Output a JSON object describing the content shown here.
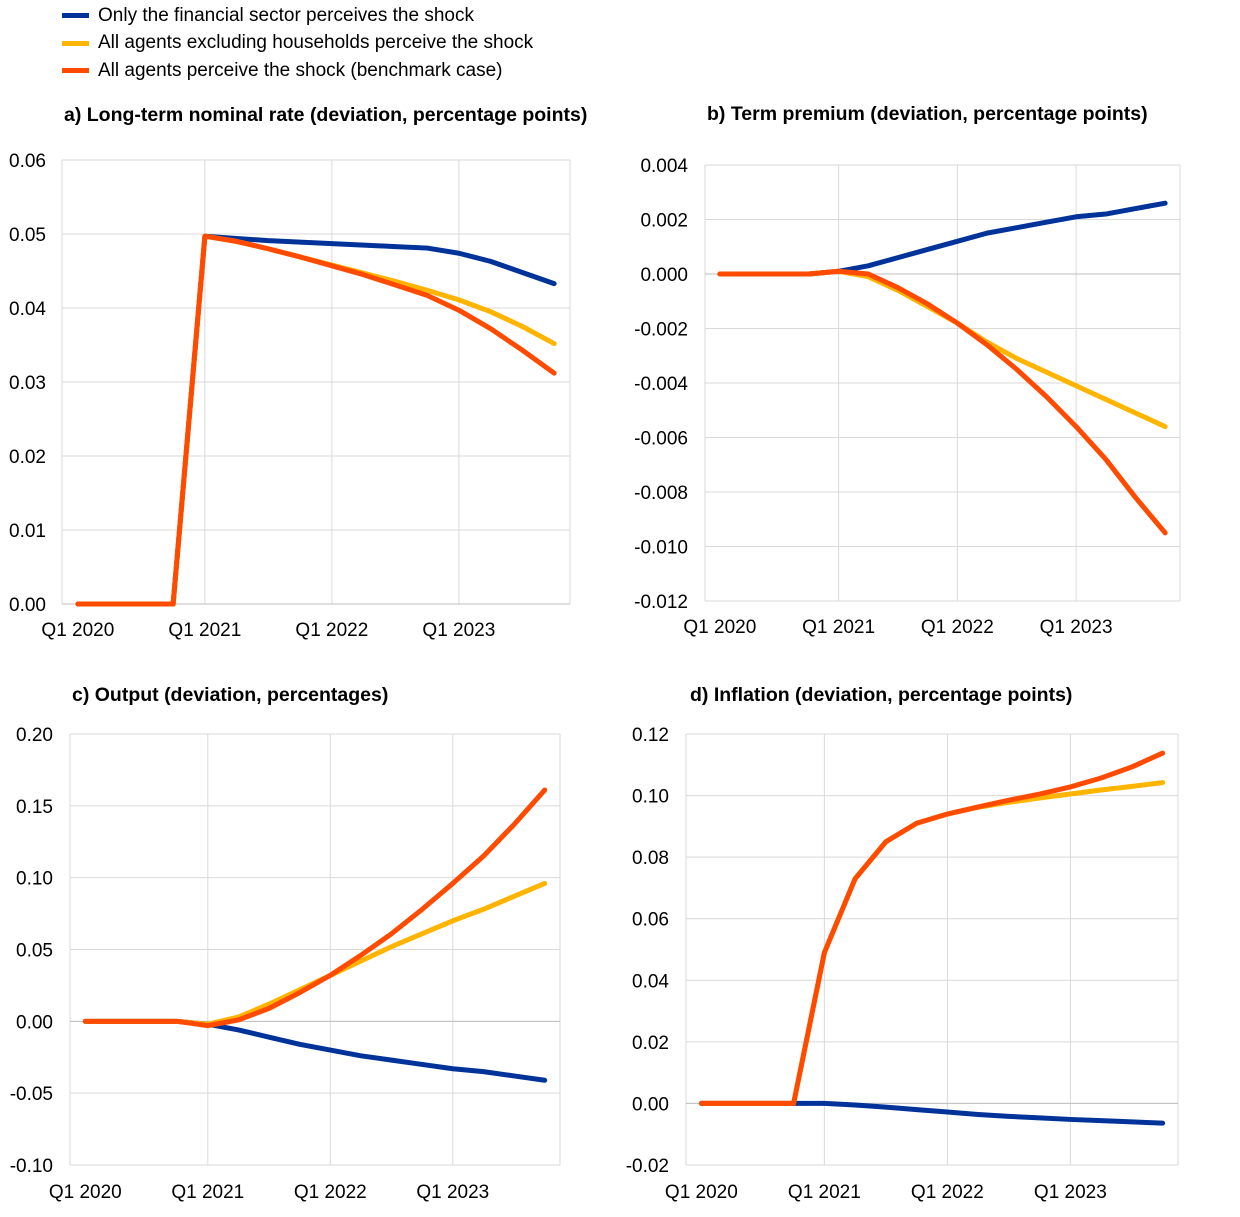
{
  "legend": [
    {
      "label": "Only the financial sector perceives the shock",
      "color": "#003399"
    },
    {
      "label": "All agents excluding households perceive the shock",
      "color": "#FFB400"
    },
    {
      "label": "All agents perceive the shock (benchmark case)",
      "color": "#FF4B00"
    }
  ],
  "chart_data": [
    {
      "type": "line",
      "title": "a) Long-term nominal rate (deviation, percentage points)",
      "x": [
        0,
        1,
        2,
        3,
        4,
        5,
        6,
        7,
        8,
        9,
        10,
        11,
        12,
        13,
        14,
        15
      ],
      "xticks": [
        0,
        4,
        8,
        12
      ],
      "xticklabels": [
        "Q1 2020",
        "Q1 2021",
        "Q1 2022",
        "Q1 2023"
      ],
      "xlim": [
        -0.5,
        15.5
      ],
      "ylim": [
        0,
        0.06
      ],
      "yticks": [
        0,
        0.01,
        0.02,
        0.03,
        0.04,
        0.05,
        0.06
      ],
      "yticklabels": [
        "0.00",
        "0.01",
        "0.02",
        "0.03",
        "0.04",
        "0.05",
        "0.06"
      ],
      "series": [
        {
          "name": "Only the financial sector perceives the shock",
          "color": "#003399",
          "values": [
            0,
            0,
            0,
            0,
            0.0497,
            0.0494,
            0.0491,
            0.0489,
            0.0487,
            0.0485,
            0.0483,
            0.0481,
            0.0474,
            0.0463,
            0.0448,
            0.0433
          ]
        },
        {
          "name": "All agents excluding households perceive the shock",
          "color": "#FFB400",
          "values": [
            0,
            0,
            0,
            0,
            0.0497,
            0.049,
            0.048,
            0.0469,
            0.0458,
            0.0447,
            0.0436,
            0.0424,
            0.0411,
            0.0395,
            0.0375,
            0.0352
          ]
        },
        {
          "name": "All agents perceive the shock (benchmark case)",
          "color": "#FF4B00",
          "values": [
            0,
            0,
            0,
            0,
            0.0497,
            0.049,
            0.048,
            0.0469,
            0.0457,
            0.0445,
            0.0431,
            0.0417,
            0.0397,
            0.0372,
            0.0343,
            0.0312
          ]
        }
      ]
    },
    {
      "type": "line",
      "title": "b) Term premium (deviation, percentage points)",
      "x": [
        0,
        1,
        2,
        3,
        4,
        5,
        6,
        7,
        8,
        9,
        10,
        11,
        12,
        13,
        14,
        15
      ],
      "xticks": [
        0,
        4,
        8,
        12
      ],
      "xticklabels": [
        "Q1 2020",
        "Q1 2021",
        "Q1 2022",
        "Q1 2023"
      ],
      "xlim": [
        -0.5,
        15.5
      ],
      "ylim": [
        -0.012,
        0.004
      ],
      "yticks": [
        -0.012,
        -0.01,
        -0.008,
        -0.006,
        -0.004,
        -0.002,
        0,
        0.002,
        0.004
      ],
      "yticklabels": [
        "-0.012",
        "-0.010",
        "-0.008",
        "-0.006",
        "-0.004",
        "-0.002",
        "0.000",
        "0.002",
        "0.004"
      ],
      "series": [
        {
          "name": "Only the financial sector perceives the shock",
          "color": "#003399",
          "values": [
            0,
            0,
            0,
            0,
            0.0001,
            0.0003,
            0.0006,
            0.0009,
            0.0012,
            0.0015,
            0.0017,
            0.0019,
            0.0021,
            0.0022,
            0.0024,
            0.0026
          ]
        },
        {
          "name": "All agents excluding households perceive the shock",
          "color": "#FFB400",
          "values": [
            0,
            0,
            0,
            0,
            0.0001,
            -0.0001,
            -0.0006,
            -0.0012,
            -0.0018,
            -0.0025,
            -0.0031,
            -0.0036,
            -0.0041,
            -0.0046,
            -0.0051,
            -0.0056
          ]
        },
        {
          "name": "All agents perceive the shock (benchmark case)",
          "color": "#FF4B00",
          "values": [
            0,
            0,
            0,
            0,
            0.0001,
            0,
            -0.0005,
            -0.0011,
            -0.0018,
            -0.0026,
            -0.0035,
            -0.0045,
            -0.0056,
            -0.0068,
            -0.0082,
            -0.0095
          ]
        }
      ]
    },
    {
      "type": "line",
      "title": "c) Output (deviation, percentages)",
      "x": [
        0,
        1,
        2,
        3,
        4,
        5,
        6,
        7,
        8,
        9,
        10,
        11,
        12,
        13,
        14,
        15
      ],
      "xticks": [
        0,
        4,
        8,
        12
      ],
      "xticklabels": [
        "Q1 2020",
        "Q1 2021",
        "Q1 2022",
        "Q1 2023"
      ],
      "xlim": [
        -0.5,
        15.5
      ],
      "ylim": [
        -0.1,
        0.2
      ],
      "yticks": [
        -0.1,
        -0.05,
        0,
        0.05,
        0.1,
        0.15,
        0.2
      ],
      "yticklabels": [
        "-0.10",
        "-0.05",
        "0.00",
        "0.05",
        "0.10",
        "0.15",
        "0.20"
      ],
      "series": [
        {
          "name": "Only the financial sector perceives the shock",
          "color": "#003399",
          "values": [
            0,
            0,
            0,
            0,
            -0.002,
            -0.006,
            -0.011,
            -0.016,
            -0.02,
            -0.024,
            -0.027,
            -0.03,
            -0.033,
            -0.035,
            -0.038,
            -0.041
          ]
        },
        {
          "name": "All agents excluding households perceive the shock",
          "color": "#FFB400",
          "values": [
            0,
            0,
            0,
            0,
            -0.002,
            0.003,
            0.012,
            0.022,
            0.032,
            0.042,
            0.052,
            0.061,
            0.07,
            0.078,
            0.087,
            0.096
          ]
        },
        {
          "name": "All agents perceive the shock (benchmark case)",
          "color": "#FF4B00",
          "values": [
            0,
            0,
            0,
            0,
            -0.003,
            0.001,
            0.009,
            0.02,
            0.032,
            0.046,
            0.061,
            0.078,
            0.096,
            0.115,
            0.137,
            0.161
          ]
        }
      ]
    },
    {
      "type": "line",
      "title": "d) Inflation (deviation, percentage points)",
      "x": [
        0,
        1,
        2,
        3,
        4,
        5,
        6,
        7,
        8,
        9,
        10,
        11,
        12,
        13,
        14,
        15
      ],
      "xticks": [
        0,
        4,
        8,
        12
      ],
      "xticklabels": [
        "Q1 2020",
        "Q1 2021",
        "Q1 2022",
        "Q1 2023"
      ],
      "xlim": [
        -0.5,
        15.5
      ],
      "ylim": [
        -0.02,
        0.12
      ],
      "yticks": [
        -0.02,
        0,
        0.02,
        0.04,
        0.06,
        0.08,
        0.1,
        0.12
      ],
      "yticklabels": [
        "-0.02",
        "0.00",
        "0.02",
        "0.04",
        "0.06",
        "0.08",
        "0.10",
        "0.12"
      ],
      "series": [
        {
          "name": "Only the financial sector perceives the shock",
          "color": "#003399",
          "values": [
            0,
            0,
            0,
            0,
            0,
            -0.0005,
            -0.0012,
            -0.002,
            -0.0028,
            -0.0036,
            -0.0042,
            -0.0047,
            -0.0052,
            -0.0056,
            -0.006,
            -0.0064
          ]
        },
        {
          "name": "All agents excluding households perceive the shock",
          "color": "#FFB400",
          "values": [
            0,
            0,
            0,
            0,
            0.049,
            0.073,
            0.085,
            0.091,
            0.094,
            0.0962,
            0.0978,
            0.0992,
            0.1005,
            0.1018,
            0.103,
            0.1042
          ]
        },
        {
          "name": "All agents perceive the shock (benchmark case)",
          "color": "#FF4B00",
          "values": [
            0,
            0,
            0,
            0,
            0.049,
            0.073,
            0.085,
            0.091,
            0.094,
            0.0963,
            0.0985,
            0.1005,
            0.1028,
            0.1057,
            0.1093,
            0.1138
          ]
        }
      ]
    }
  ]
}
